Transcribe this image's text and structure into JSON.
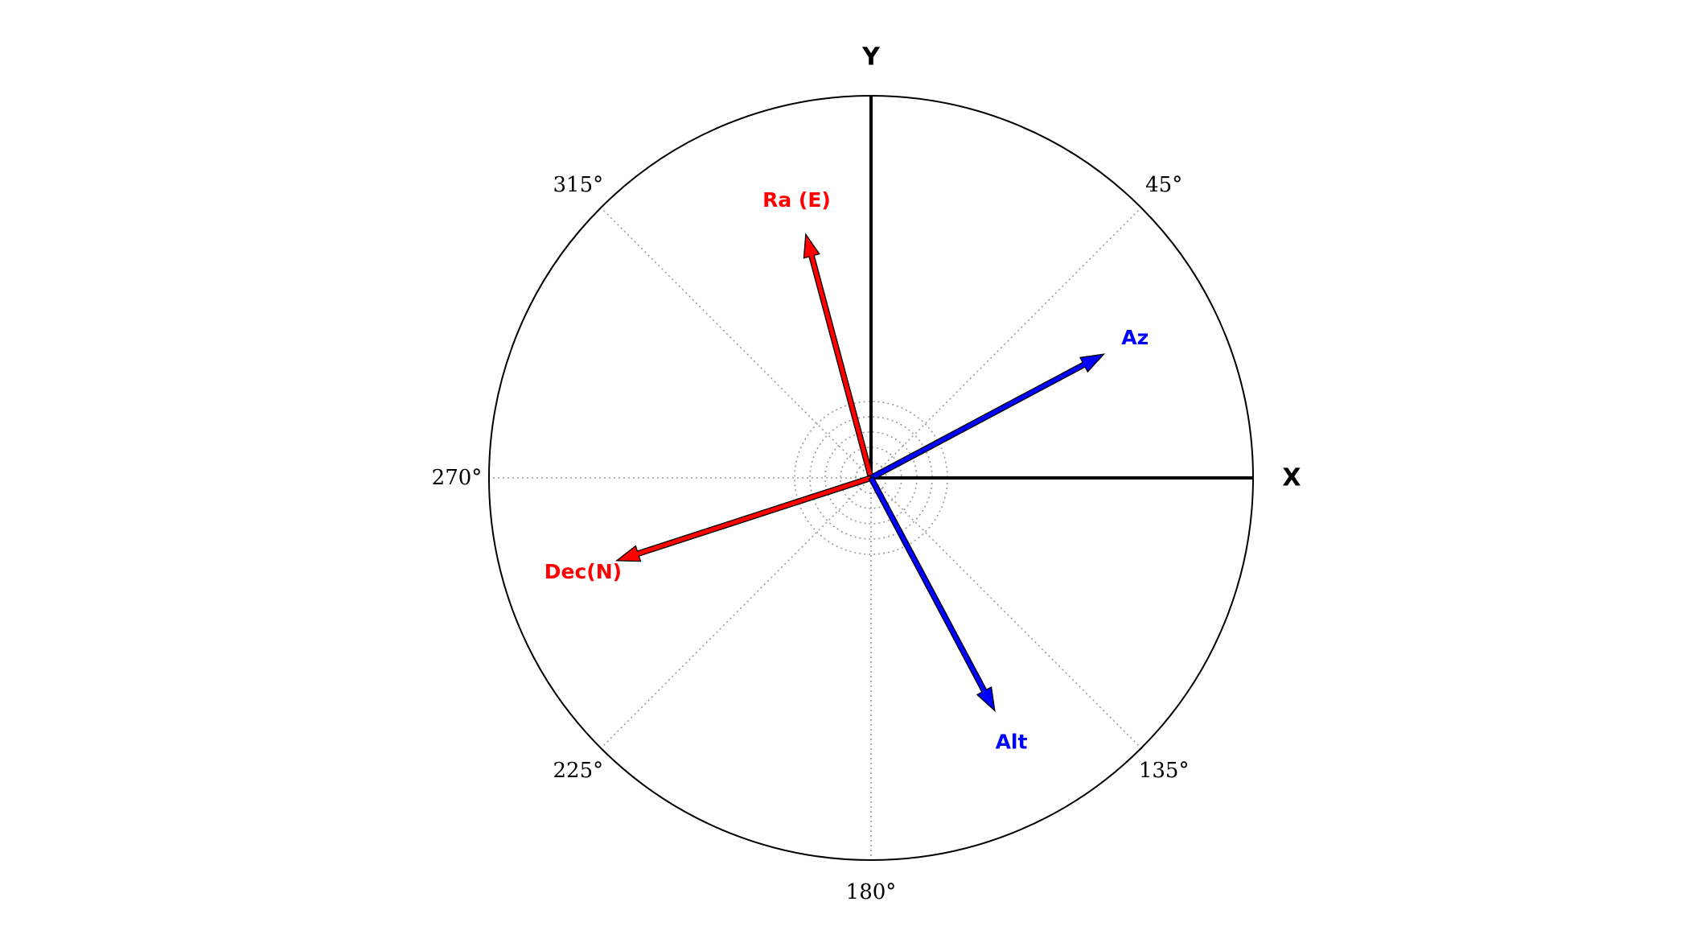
{
  "diagram": {
    "axes": [
      {
        "name": "Y",
        "angle_deg": 0
      },
      {
        "name": "X",
        "angle_deg": 90
      }
    ],
    "angle_labels": [
      {
        "text": "45°",
        "angle_deg": 45
      },
      {
        "text": "135°",
        "angle_deg": 135
      },
      {
        "text": "180°",
        "angle_deg": 180
      },
      {
        "text": "225°",
        "angle_deg": 225
      },
      {
        "text": "270°",
        "angle_deg": 270
      },
      {
        "text": "315°",
        "angle_deg": 315
      }
    ],
    "rings": 5,
    "spokes_deg": [
      0,
      45,
      90,
      135,
      180,
      225,
      270,
      315
    ],
    "vectors": [
      {
        "label": "Ra (E)",
        "angle_deg": 345,
        "length": 0.66,
        "color": "#ff0000"
      },
      {
        "label": "Dec(N)",
        "angle_deg": 252,
        "length": 0.7,
        "color": "#ff0000"
      },
      {
        "label": "Az",
        "angle_deg": 62,
        "length": 0.69,
        "color": "#0000ff"
      },
      {
        "label": "Alt",
        "angle_deg": 152,
        "length": 0.69,
        "color": "#0000ff"
      }
    ]
  }
}
